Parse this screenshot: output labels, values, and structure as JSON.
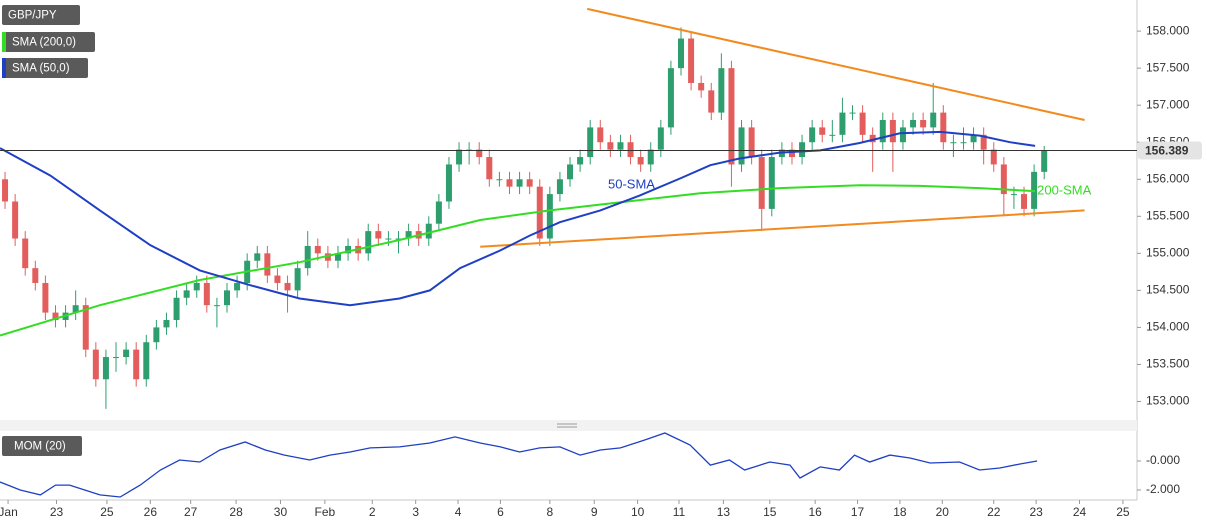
{
  "chart_data": [
    {
      "type": "candlestick",
      "title": "GBP/JPY",
      "xlim": [
        -0.5,
        112
      ],
      "ylim": [
        152.75,
        158.42
      ],
      "yticks": [
        {
          "value": 153,
          "label": "153.000"
        },
        {
          "value": 153.5,
          "label": "153.500"
        },
        {
          "value": 154,
          "label": "154.000"
        },
        {
          "value": 154.5,
          "label": "154.500"
        },
        {
          "value": 155,
          "label": "155.000"
        },
        {
          "value": 155.5,
          "label": "155.500"
        },
        {
          "value": 156,
          "label": "156.000"
        },
        {
          "value": 156.5,
          "label": "156.500"
        },
        {
          "value": 157,
          "label": "157.000"
        },
        {
          "value": 157.5,
          "label": "157.500"
        },
        {
          "value": 158,
          "label": "158.000"
        }
      ],
      "candles": {
        "up_color": "#2f9e6e",
        "down_color": "#e35d5d",
        "x": [
          0,
          1,
          2,
          3,
          4,
          5,
          6,
          7,
          8,
          9,
          10,
          11,
          12,
          13,
          14,
          15,
          16,
          17,
          18,
          19,
          20,
          21,
          22,
          23,
          24,
          25,
          26,
          27,
          28,
          29,
          30,
          31,
          32,
          33,
          34,
          35,
          36,
          37,
          38,
          39,
          40,
          41,
          42,
          43,
          44,
          45,
          46,
          47,
          48,
          49,
          50,
          51,
          52,
          53,
          54,
          55,
          56,
          57,
          58,
          59,
          60,
          61,
          62,
          63,
          64,
          65,
          66,
          67,
          68,
          69,
          70,
          71,
          72,
          73,
          74,
          75,
          76,
          77,
          78,
          79,
          80,
          81,
          82,
          83,
          84,
          85,
          86,
          87,
          88,
          89,
          90,
          91,
          92,
          93,
          94,
          95,
          96,
          97,
          98,
          99,
          100,
          101,
          102,
          103
        ],
        "open": [
          156.0,
          155.7,
          155.2,
          154.8,
          154.6,
          154.2,
          154.1,
          154.2,
          154.3,
          153.7,
          153.3,
          153.6,
          153.6,
          153.7,
          153.3,
          153.8,
          154.0,
          154.1,
          154.4,
          154.5,
          154.6,
          154.3,
          154.3,
          154.5,
          154.6,
          154.9,
          155.0,
          154.7,
          154.6,
          154.5,
          154.8,
          155.1,
          155.0,
          154.9,
          155.0,
          155.1,
          155.0,
          155.3,
          155.2,
          155.2,
          155.2,
          155.3,
          155.2,
          155.4,
          155.7,
          156.2,
          156.4,
          156.4,
          156.3,
          156.0,
          156.0,
          155.9,
          156.0,
          155.9,
          155.2,
          155.8,
          156.0,
          156.2,
          156.3,
          156.7,
          156.5,
          156.4,
          156.5,
          156.3,
          156.2,
          156.4,
          156.7,
          157.5,
          157.9,
          157.3,
          157.2,
          156.9,
          157.5,
          156.2,
          156.7,
          156.3,
          155.6,
          156.3,
          156.4,
          156.3,
          156.5,
          156.7,
          156.6,
          156.6,
          156.9,
          156.9,
          156.6,
          156.5,
          156.8,
          156.5,
          156.7,
          156.8,
          156.7,
          156.9,
          156.5,
          156.5,
          156.5,
          156.6,
          156.4,
          156.2,
          155.8,
          155.8,
          155.6,
          156.1
        ],
        "high": [
          156.1,
          155.8,
          155.3,
          154.9,
          154.7,
          154.3,
          154.3,
          154.5,
          154.4,
          153.8,
          153.7,
          153.8,
          153.8,
          153.8,
          153.9,
          154.1,
          154.2,
          154.5,
          154.6,
          154.7,
          154.7,
          154.4,
          154.6,
          154.7,
          155.0,
          155.1,
          155.1,
          154.8,
          154.7,
          154.9,
          155.3,
          155.2,
          155.1,
          155.1,
          155.2,
          155.2,
          155.4,
          155.4,
          155.3,
          155.3,
          155.4,
          155.4,
          155.5,
          155.8,
          156.3,
          156.5,
          156.5,
          156.5,
          156.4,
          156.1,
          156.1,
          156.1,
          156.1,
          156.0,
          155.9,
          156.1,
          156.3,
          156.4,
          156.8,
          156.8,
          156.6,
          156.6,
          156.6,
          156.4,
          156.5,
          156.8,
          157.6,
          158.05,
          158.0,
          157.4,
          157.3,
          157.7,
          157.6,
          156.8,
          156.8,
          156.4,
          156.4,
          156.5,
          156.5,
          156.6,
          156.8,
          156.8,
          156.8,
          157.1,
          157.0,
          157.0,
          156.7,
          156.9,
          156.9,
          156.8,
          156.9,
          156.9,
          157.3,
          157.0,
          156.6,
          156.7,
          156.7,
          156.7,
          156.5,
          156.3,
          155.9,
          155.9,
          156.2,
          156.45
        ],
        "low": [
          155.6,
          155.1,
          154.7,
          154.5,
          154.1,
          154.0,
          154.0,
          154.1,
          153.6,
          153.2,
          152.9,
          153.4,
          153.5,
          153.2,
          153.2,
          153.7,
          153.9,
          154.0,
          154.3,
          154.4,
          154.2,
          154.0,
          154.2,
          154.4,
          154.5,
          154.8,
          154.6,
          154.5,
          154.2,
          154.4,
          154.7,
          154.9,
          154.8,
          154.8,
          154.9,
          154.9,
          154.9,
          155.1,
          155.1,
          155.0,
          155.1,
          155.1,
          155.1,
          155.3,
          155.6,
          156.1,
          156.2,
          156.2,
          155.9,
          155.9,
          155.8,
          155.8,
          155.8,
          155.1,
          155.1,
          155.7,
          155.9,
          156.1,
          156.2,
          156.4,
          156.3,
          156.3,
          156.2,
          156.1,
          156.1,
          156.3,
          156.6,
          157.4,
          157.2,
          157.1,
          156.8,
          156.8,
          155.9,
          156.1,
          156.2,
          155.3,
          155.5,
          156.2,
          156.2,
          156.2,
          156.4,
          156.5,
          156.5,
          156.5,
          156.8,
          156.5,
          156.1,
          156.4,
          156.1,
          156.4,
          156.6,
          156.6,
          156.6,
          156.4,
          156.3,
          156.4,
          156.4,
          156.2,
          156.1,
          155.5,
          155.6,
          155.5,
          155.5,
          156.0
        ],
        "close": [
          155.7,
          155.2,
          154.8,
          154.6,
          154.2,
          154.1,
          154.2,
          154.3,
          153.7,
          153.3,
          153.6,
          153.6,
          153.7,
          153.3,
          153.8,
          154.0,
          154.1,
          154.4,
          154.5,
          154.6,
          154.3,
          154.3,
          154.5,
          154.6,
          154.9,
          155.0,
          154.7,
          154.6,
          154.5,
          154.8,
          155.1,
          155.0,
          154.9,
          155.0,
          155.1,
          155.0,
          155.3,
          155.2,
          155.2,
          155.2,
          155.3,
          155.2,
          155.4,
          155.7,
          156.2,
          156.4,
          156.4,
          156.3,
          156.0,
          156.0,
          155.9,
          156.0,
          155.9,
          155.2,
          155.8,
          156.0,
          156.2,
          156.3,
          156.7,
          156.5,
          156.4,
          156.5,
          156.3,
          156.2,
          156.4,
          156.7,
          157.5,
          157.9,
          157.3,
          157.2,
          156.9,
          157.5,
          156.2,
          156.7,
          156.3,
          155.6,
          156.3,
          156.4,
          156.3,
          156.5,
          156.7,
          156.6,
          156.6,
          156.9,
          156.9,
          156.6,
          156.5,
          156.8,
          156.5,
          156.7,
          156.8,
          156.7,
          156.9,
          156.5,
          156.5,
          156.5,
          156.6,
          156.4,
          156.2,
          155.8,
          155.8,
          155.6,
          156.1,
          156.39
        ]
      },
      "series": [
        {
          "name": "SMA (200,0)",
          "color": "#33dd22",
          "label": "200-SMA",
          "x": [
            -0.5,
            9.4,
            19.3,
            29.2,
            39.1,
            47.1,
            54.0,
            61.0,
            68.9,
            76.8,
            84.7,
            90.7,
            96.6,
            102.1
          ],
          "values": [
            153.89,
            154.3,
            154.64,
            154.88,
            155.18,
            155.45,
            155.58,
            155.69,
            155.81,
            155.88,
            155.92,
            155.91,
            155.88,
            155.84
          ]
        },
        {
          "name": "SMA (50,0)",
          "color": "#1f3fc4",
          "label": "50-SMA",
          "x": [
            -0.5,
            4.5,
            9.4,
            14.4,
            19.3,
            24.3,
            29.2,
            34.2,
            39.1,
            42.1,
            45.1,
            49.1,
            52.0,
            55.0,
            59.0,
            62.9,
            66.9,
            69.9,
            72.8,
            76.8,
            80.8,
            84.7,
            88.7,
            92.7,
            96.6,
            99.6,
            102.1
          ],
          "values": [
            156.42,
            156.05,
            155.58,
            155.11,
            154.77,
            154.57,
            154.39,
            154.3,
            154.39,
            154.5,
            154.8,
            155.04,
            155.24,
            155.42,
            155.58,
            155.78,
            156.01,
            156.19,
            156.28,
            156.36,
            156.39,
            156.49,
            156.62,
            156.64,
            156.59,
            156.5,
            156.45
          ]
        }
      ],
      "trendlines": [
        {
          "color": "#f28a1e",
          "x": [
            57.7,
            107.0
          ],
          "values": [
            158.3,
            156.8
          ]
        },
        {
          "color": "#f28a1e",
          "x": [
            47.1,
            107.0
          ],
          "values": [
            155.09,
            155.58
          ]
        }
      ],
      "last_value": 156.389
    },
    {
      "type": "line",
      "title": "MOM (20)",
      "xlim": [
        -0.5,
        112
      ],
      "ylim": [
        -2.69,
        2.0
      ],
      "yticks": [
        {
          "value": 0,
          "label": "-0.000"
        },
        {
          "value": -2,
          "label": "-2.000"
        }
      ],
      "xticks": [
        {
          "value": 0.3,
          "label": "Jan"
        },
        {
          "value": 5.1,
          "label": "23"
        },
        {
          "value": 10.1,
          "label": "25"
        },
        {
          "value": 14.4,
          "label": "26"
        },
        {
          "value": 18.4,
          "label": "27"
        },
        {
          "value": 22.9,
          "label": "28"
        },
        {
          "value": 27.3,
          "label": "30"
        },
        {
          "value": 31.7,
          "label": "Feb"
        },
        {
          "value": 36.4,
          "label": "2"
        },
        {
          "value": 40.7,
          "label": "3"
        },
        {
          "value": 44.9,
          "label": "4"
        },
        {
          "value": 49.1,
          "label": "6"
        },
        {
          "value": 54.0,
          "label": "8"
        },
        {
          "value": 58.4,
          "label": "9"
        },
        {
          "value": 62.7,
          "label": "10"
        },
        {
          "value": 66.8,
          "label": "11"
        },
        {
          "value": 71.2,
          "label": "13"
        },
        {
          "value": 75.8,
          "label": "15"
        },
        {
          "value": 80.3,
          "label": "16"
        },
        {
          "value": 84.5,
          "label": "17"
        },
        {
          "value": 88.7,
          "label": "18"
        },
        {
          "value": 92.9,
          "label": "20"
        },
        {
          "value": 98.0,
          "label": "22"
        },
        {
          "value": 102.2,
          "label": "23"
        },
        {
          "value": 106.5,
          "label": "24"
        },
        {
          "value": 110.8,
          "label": "25"
        }
      ],
      "series": [
        {
          "color": "#1f3fc4",
          "x": [
            -0.5,
            1.5,
            3.5,
            5.0,
            6.4,
            7.9,
            9.4,
            11.4,
            13.4,
            15.4,
            17.3,
            19.3,
            21.3,
            23.8,
            25.8,
            27.7,
            30.2,
            32.2,
            34.2,
            36.2,
            39.1,
            42.1,
            44.6,
            47.1,
            49.1,
            51.0,
            53.0,
            55.0,
            57.0,
            59.0,
            61.0,
            63.4,
            65.4,
            67.9,
            69.9,
            71.8,
            73.3,
            75.8,
            77.8,
            78.8,
            80.8,
            82.7,
            84.2,
            85.7,
            87.7,
            89.7,
            91.7,
            94.6,
            96.6,
            98.6,
            100.6,
            102.3
          ],
          "values": [
            -1.45,
            -2.0,
            -2.34,
            -1.66,
            -1.66,
            -2.0,
            -2.34,
            -2.48,
            -1.66,
            -0.62,
            0.07,
            -0.07,
            0.76,
            1.31,
            0.76,
            0.41,
            0.07,
            0.41,
            0.62,
            0.9,
            0.97,
            1.24,
            1.66,
            1.24,
            0.97,
            0.62,
            0.9,
            0.97,
            0.41,
            0.76,
            0.9,
            1.45,
            1.93,
            1.1,
            -0.28,
            0.07,
            -0.62,
            -0.07,
            -0.28,
            -1.17,
            -0.41,
            -0.62,
            0.41,
            -0.07,
            0.41,
            0.21,
            -0.14,
            -0.07,
            -0.62,
            -0.48,
            -0.21,
            0
          ]
        }
      ]
    }
  ]
}
